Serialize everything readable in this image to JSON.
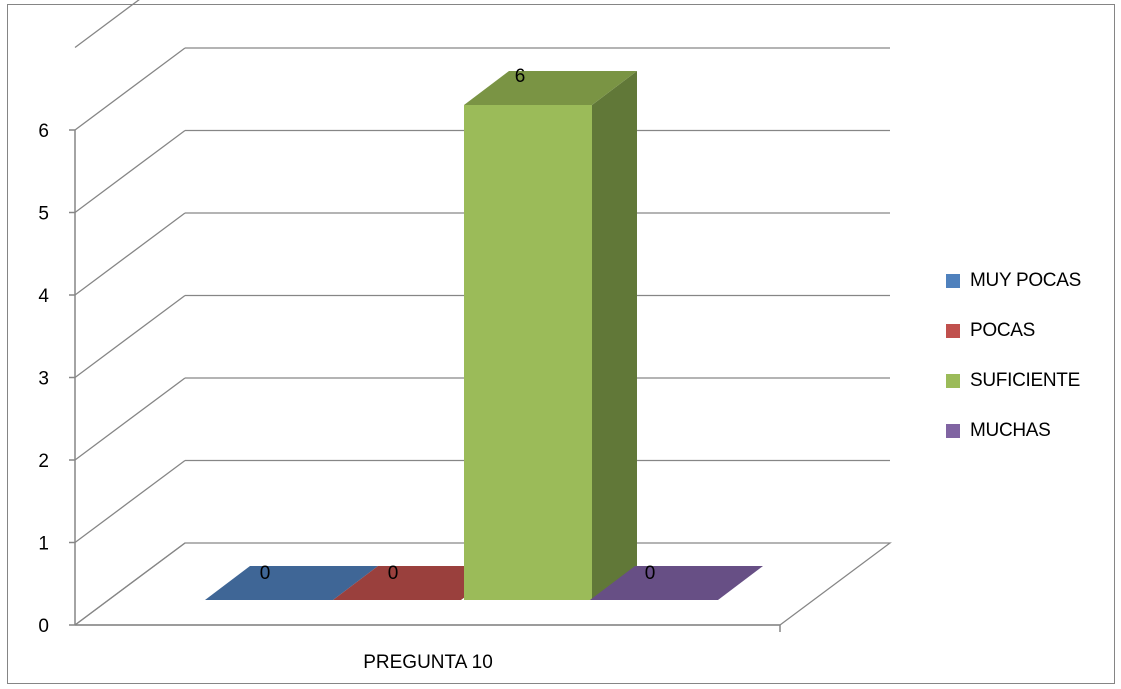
{
  "chart_data": {
    "type": "bar",
    "categories": [
      "PREGUNTA 10"
    ],
    "series": [
      {
        "name": "MUY POCAS",
        "values": [
          0
        ],
        "color": "#4F81BD",
        "dark": "#3A5F8C",
        "top": "#3F6696"
      },
      {
        "name": "POCAS",
        "values": [
          0
        ],
        "color": "#C0504D",
        "dark": "#8F3B39",
        "top": "#9A403D"
      },
      {
        "name": "SUFICIENTE",
        "values": [
          6
        ],
        "color": "#9BBB59",
        "dark": "#617838",
        "top": "#7A9444"
      },
      {
        "name": "MUCHAS",
        "values": [
          0
        ],
        "color": "#8064A2",
        "dark": "#5E4A78",
        "top": "#674F85"
      }
    ],
    "ylim": [
      0,
      6
    ],
    "yticks": [
      "0",
      "1",
      "2",
      "3",
      "4",
      "5",
      "6"
    ],
    "data_labels": [
      "0",
      "0",
      "6",
      "0"
    ],
    "grid": true,
    "legend": "right",
    "style": "3d-clustered-column"
  }
}
